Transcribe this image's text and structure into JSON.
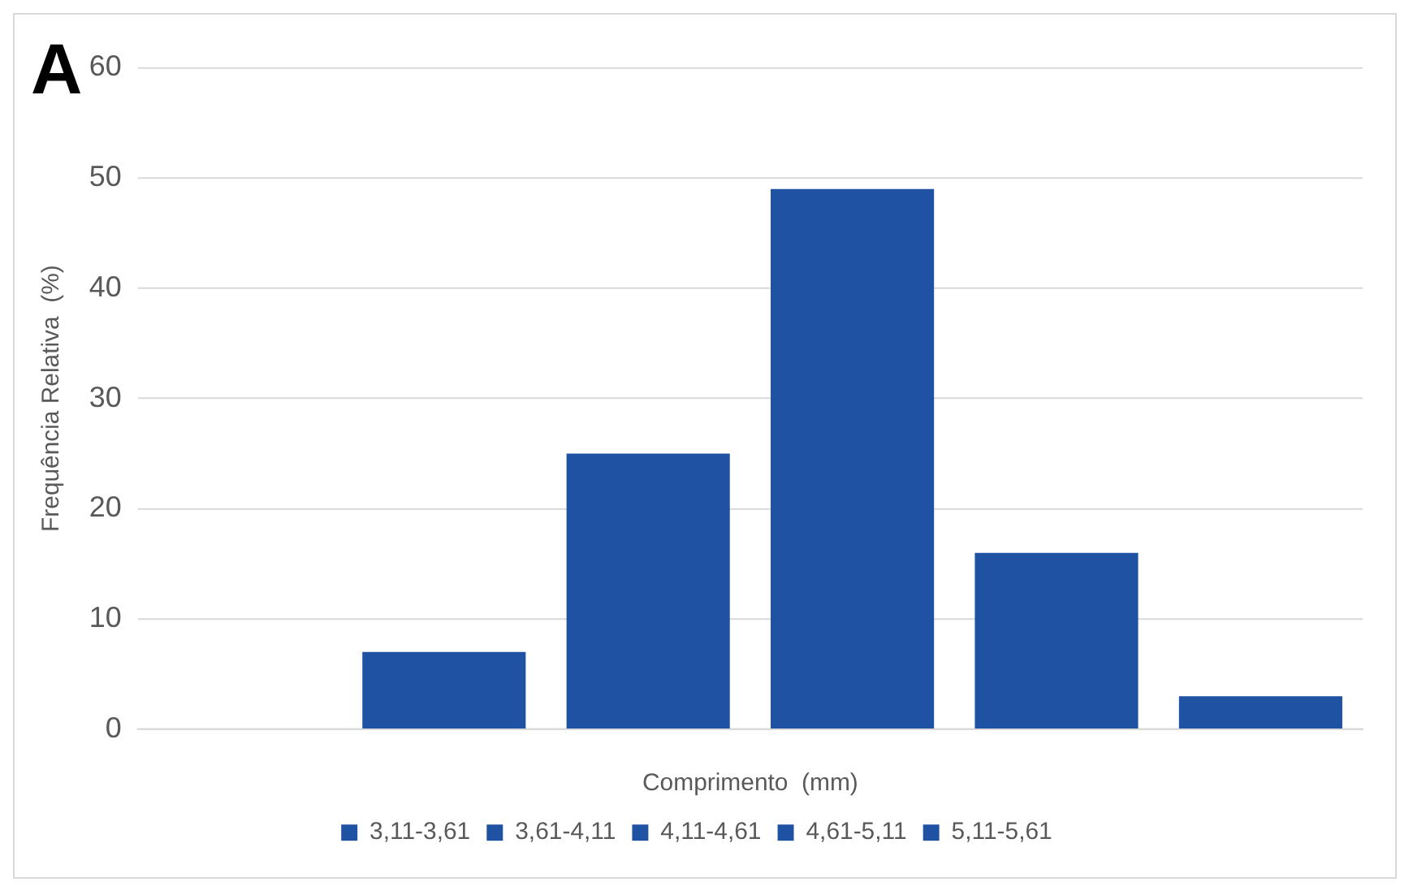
{
  "chart_data": {
    "type": "bar",
    "title": "A",
    "xlabel": "Comprimento  (mm)",
    "ylabel": "Frequência Relativa  (%)",
    "categories": [
      null,
      null,
      null,
      null,
      null,
      null
    ],
    "series": [
      {
        "name": "3,11-3,61",
        "color": "#1f52a3",
        "values": [
          null,
          7,
          null,
          null,
          null,
          null
        ]
      },
      {
        "name": "3,61-4,11",
        "color": "#1f52a3",
        "values": [
          null,
          null,
          25,
          null,
          null,
          null
        ]
      },
      {
        "name": "4,11-4,61",
        "color": "#1f52a3",
        "values": [
          null,
          null,
          null,
          49,
          null,
          null
        ]
      },
      {
        "name": "4,61-5,11",
        "color": "#1f52a3",
        "values": [
          null,
          null,
          null,
          null,
          16,
          null
        ]
      },
      {
        "name": "5,11-5,61",
        "color": "#1f52a3",
        "values": [
          null,
          null,
          null,
          null,
          null,
          3
        ]
      }
    ],
    "ylim": [
      0,
      60
    ],
    "yticks": [
      0,
      10,
      20,
      30,
      40,
      50,
      60
    ],
    "grid": "y",
    "legend": "bottom"
  }
}
